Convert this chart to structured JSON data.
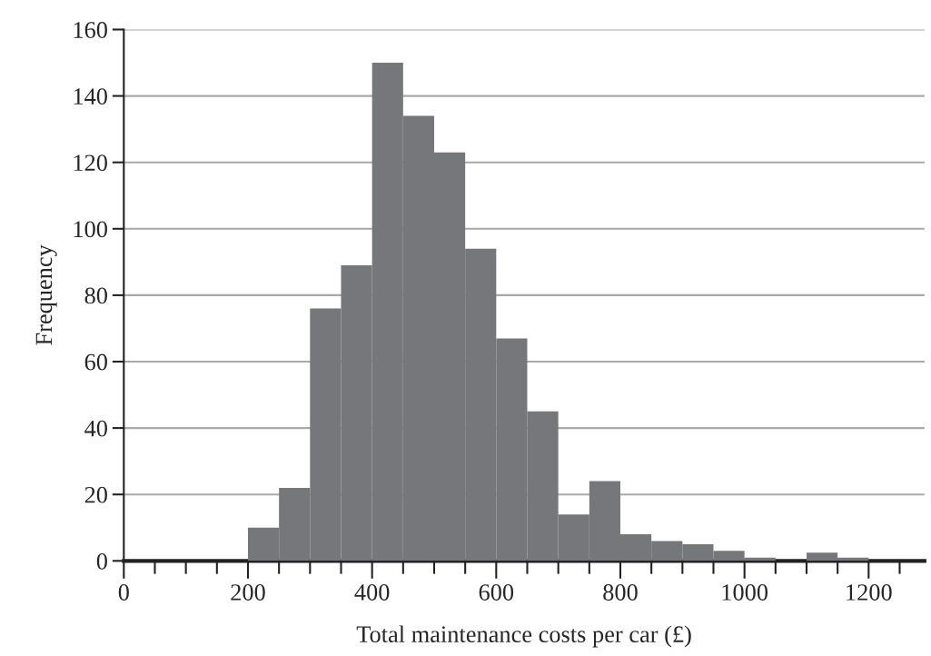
{
  "chart_data": {
    "type": "histogram",
    "xlabel": "Total maintenance costs per car (£)",
    "ylabel": "Frequency",
    "bins": [
      200,
      250,
      300,
      350,
      400,
      450,
      500,
      550,
      600,
      650,
      700,
      750,
      800,
      850,
      900,
      950,
      1000,
      1050,
      1100,
      1150,
      1200
    ],
    "values": [
      10,
      22,
      76,
      89,
      150,
      134,
      123,
      94,
      67,
      45,
      14,
      24,
      8,
      6,
      5,
      3,
      1,
      0,
      2.5,
      1
    ],
    "color": "#76777b",
    "xlim": [
      0,
      1290
    ],
    "ylim": [
      0,
      160
    ],
    "xticks": [
      0,
      {
        "value": 50,
        "label": null
      },
      {
        "value": 100,
        "label": null
      },
      {
        "value": 150,
        "label": null
      },
      200,
      {
        "value": 250,
        "label": null
      },
      {
        "value": 300,
        "label": null
      },
      {
        "value": 350,
        "label": null
      },
      400,
      {
        "value": 450,
        "label": null
      },
      {
        "value": 500,
        "label": null
      },
      {
        "value": 550,
        "label": null
      },
      600,
      {
        "value": 650,
        "label": null
      },
      {
        "value": 700,
        "label": null
      },
      {
        "value": 750,
        "label": null
      },
      800,
      {
        "value": 850,
        "label": null
      },
      {
        "value": 900,
        "label": null
      },
      {
        "value": 950,
        "label": null
      },
      1000,
      {
        "value": 1050,
        "label": null
      },
      {
        "value": 1100,
        "label": null
      },
      {
        "value": 1150,
        "label": null
      },
      1200,
      {
        "value": 1250,
        "label": null
      }
    ],
    "yticks": [
      0,
      20,
      40,
      60,
      80,
      100,
      120,
      140,
      160
    ],
    "grid": "y"
  }
}
